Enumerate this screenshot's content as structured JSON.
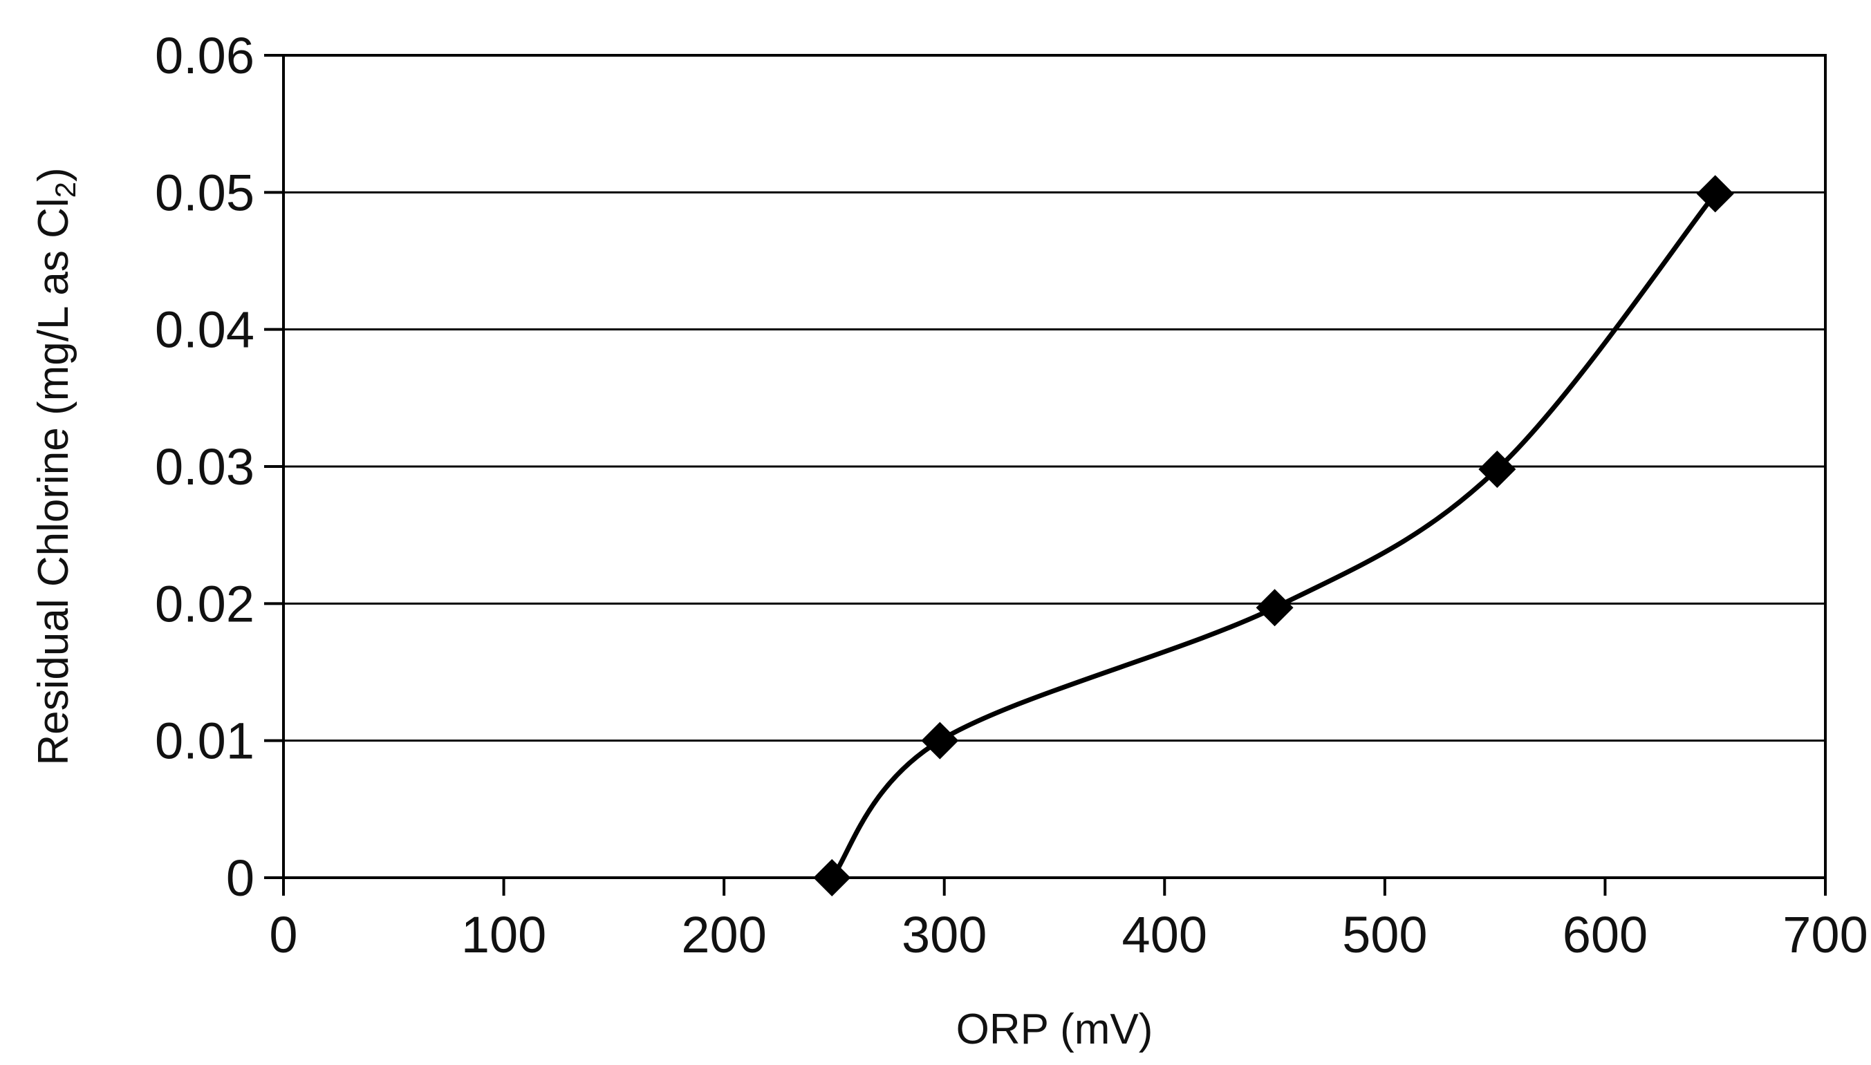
{
  "chart_data": {
    "type": "scatter",
    "title": "",
    "xlabel": "ORP (mV)",
    "ylabel": {
      "main": "Residual Chlorine (mg/L as Cl",
      "subscript": "2",
      "close": ")"
    },
    "xlim": [
      0,
      700
    ],
    "ylim": [
      0,
      0.06
    ],
    "x_ticks": [
      {
        "value": 0,
        "label": "0"
      },
      {
        "value": 100,
        "label": "100"
      },
      {
        "value": 200,
        "label": "200"
      },
      {
        "value": 300,
        "label": "300"
      },
      {
        "value": 400,
        "label": "400"
      },
      {
        "value": 500,
        "label": "500"
      },
      {
        "value": 600,
        "label": "600"
      },
      {
        "value": 700,
        "label": "700"
      }
    ],
    "y_ticks": [
      {
        "value": 0,
        "label": "0"
      },
      {
        "value": 0.01,
        "label": "0.01"
      },
      {
        "value": 0.02,
        "label": "0.02"
      },
      {
        "value": 0.03,
        "label": "0.03"
      },
      {
        "value": 0.04,
        "label": "0.04"
      },
      {
        "value": 0.05,
        "label": "0.05"
      },
      {
        "value": 0.06,
        "label": "0.06"
      }
    ],
    "grid": "horizontal",
    "legend": "none",
    "series": [
      {
        "name": "Residual Chlorine",
        "marker": "diamond",
        "line": "smoothed",
        "color": "#000000",
        "points": [
          {
            "x": 249,
            "y": 0.0
          },
          {
            "x": 298,
            "y": 0.01
          },
          {
            "x": 450,
            "y": 0.0197
          },
          {
            "x": 551,
            "y": 0.0298
          },
          {
            "x": 650,
            "y": 0.0499
          }
        ]
      }
    ]
  }
}
